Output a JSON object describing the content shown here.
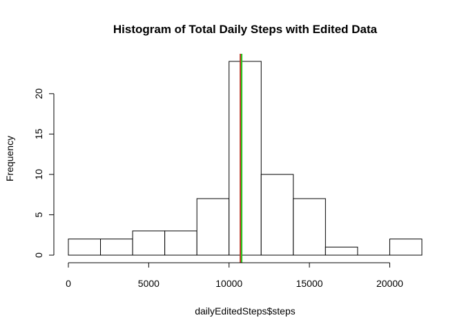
{
  "chart_data": {
    "type": "histogram",
    "title": "Histogram of Total Daily Steps with Edited Data",
    "xlabel": "dailyEditedSteps$steps",
    "ylabel": "Frequency",
    "bins": [
      {
        "start": 0,
        "end": 2000,
        "count": 2
      },
      {
        "start": 2000,
        "end": 4000,
        "count": 2
      },
      {
        "start": 4000,
        "end": 6000,
        "count": 3
      },
      {
        "start": 6000,
        "end": 8000,
        "count": 3
      },
      {
        "start": 8000,
        "end": 10000,
        "count": 7
      },
      {
        "start": 10000,
        "end": 12000,
        "count": 24
      },
      {
        "start": 12000,
        "end": 14000,
        "count": 10
      },
      {
        "start": 14000,
        "end": 16000,
        "count": 7
      },
      {
        "start": 16000,
        "end": 18000,
        "count": 1
      },
      {
        "start": 18000,
        "end": 20000,
        "count": 0
      },
      {
        "start": 20000,
        "end": 22000,
        "count": 2
      }
    ],
    "x_ticks": [
      0,
      5000,
      10000,
      15000,
      20000
    ],
    "y_ticks": [
      0,
      5,
      10,
      15,
      20
    ],
    "xlim": [
      0,
      22000
    ],
    "ylim": [
      0,
      24
    ],
    "reference_lines": [
      {
        "x": 10766,
        "color": "#c0392b"
      },
      {
        "x": 10766,
        "color": "#22cc22"
      }
    ]
  }
}
